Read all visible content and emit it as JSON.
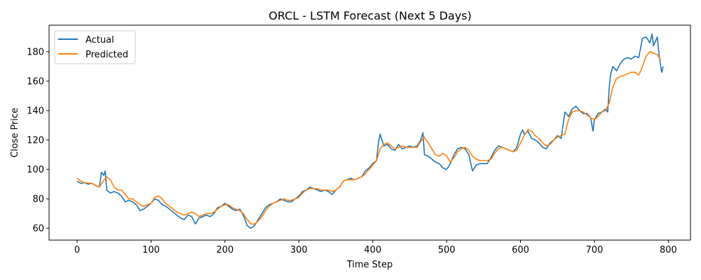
{
  "chart_data": {
    "type": "line",
    "title": "ORCL - LSTM Forecast (Next 5 Days)",
    "xlabel": "Time Step",
    "ylabel": "Close Price",
    "xlim": [
      -38,
      830
    ],
    "ylim": [
      52,
      198
    ],
    "xticks": [
      0,
      100,
      200,
      300,
      400,
      500,
      600,
      700,
      800
    ],
    "yticks": [
      60,
      80,
      100,
      120,
      140,
      160,
      180
    ],
    "grid": false,
    "legend_position": "top-left",
    "series": [
      {
        "name": "Actual",
        "color": "#1f77b4",
        "points": [
          [
            0,
            92
          ],
          [
            5,
            90.5
          ],
          [
            10,
            91
          ],
          [
            15,
            90
          ],
          [
            20,
            90.5
          ],
          [
            25,
            89
          ],
          [
            30,
            88
          ],
          [
            33,
            98
          ],
          [
            36,
            96
          ],
          [
            38,
            99
          ],
          [
            40,
            86
          ],
          [
            45,
            84
          ],
          [
            50,
            85
          ],
          [
            55,
            84
          ],
          [
            60,
            82
          ],
          [
            65,
            78
          ],
          [
            70,
            79
          ],
          [
            75,
            78
          ],
          [
            80,
            76
          ],
          [
            85,
            72
          ],
          [
            90,
            73
          ],
          [
            95,
            75
          ],
          [
            100,
            77
          ],
          [
            105,
            80
          ],
          [
            110,
            79
          ],
          [
            115,
            76
          ],
          [
            120,
            75
          ],
          [
            125,
            73
          ],
          [
            130,
            71
          ],
          [
            135,
            69
          ],
          [
            140,
            67
          ],
          [
            145,
            66
          ],
          [
            150,
            69
          ],
          [
            155,
            68
          ],
          [
            160,
            63
          ],
          [
            165,
            67
          ],
          [
            170,
            68
          ],
          [
            175,
            69
          ],
          [
            180,
            68
          ],
          [
            185,
            70
          ],
          [
            190,
            74
          ],
          [
            195,
            75
          ],
          [
            200,
            77
          ],
          [
            205,
            75
          ],
          [
            210,
            73
          ],
          [
            215,
            72
          ],
          [
            220,
            73
          ],
          [
            225,
            69
          ],
          [
            230,
            62
          ],
          [
            235,
            60
          ],
          [
            240,
            62
          ],
          [
            245,
            66
          ],
          [
            250,
            70
          ],
          [
            255,
            74
          ],
          [
            260,
            76
          ],
          [
            265,
            77
          ],
          [
            270,
            78
          ],
          [
            275,
            80
          ],
          [
            280,
            79
          ],
          [
            285,
            78
          ],
          [
            290,
            78
          ],
          [
            295,
            80
          ],
          [
            300,
            82
          ],
          [
            305,
            85
          ],
          [
            310,
            86
          ],
          [
            315,
            88
          ],
          [
            320,
            87
          ],
          [
            325,
            86
          ],
          [
            330,
            85
          ],
          [
            335,
            86
          ],
          [
            340,
            85
          ],
          [
            345,
            83
          ],
          [
            350,
            86
          ],
          [
            355,
            88
          ],
          [
            360,
            92
          ],
          [
            365,
            93
          ],
          [
            370,
            94
          ],
          [
            375,
            93
          ],
          [
            380,
            94
          ],
          [
            385,
            95
          ],
          [
            390,
            99
          ],
          [
            395,
            101
          ],
          [
            400,
            104
          ],
          [
            405,
            106
          ],
          [
            408,
            119
          ],
          [
            410,
            124
          ],
          [
            415,
            116
          ],
          [
            420,
            117
          ],
          [
            425,
            114
          ],
          [
            430,
            113
          ],
          [
            435,
            117
          ],
          [
            440,
            114
          ],
          [
            445,
            115
          ],
          [
            450,
            116
          ],
          [
            455,
            115
          ],
          [
            460,
            116
          ],
          [
            465,
            120
          ],
          [
            468,
            125
          ],
          [
            470,
            110
          ],
          [
            475,
            109
          ],
          [
            480,
            107
          ],
          [
            485,
            105
          ],
          [
            490,
            104
          ],
          [
            495,
            101
          ],
          [
            500,
            100
          ],
          [
            505,
            104
          ],
          [
            510,
            110
          ],
          [
            515,
            114
          ],
          [
            520,
            115
          ],
          [
            525,
            114
          ],
          [
            530,
            110
          ],
          [
            535,
            99
          ],
          [
            540,
            103
          ],
          [
            545,
            104
          ],
          [
            550,
            104
          ],
          [
            555,
            104
          ],
          [
            560,
            108
          ],
          [
            565,
            113
          ],
          [
            570,
            116
          ],
          [
            575,
            115
          ],
          [
            580,
            114
          ],
          [
            585,
            113
          ],
          [
            590,
            112
          ],
          [
            595,
            115
          ],
          [
            600,
            124
          ],
          [
            603,
            127
          ],
          [
            605,
            124
          ],
          [
            610,
            126
          ],
          [
            615,
            121
          ],
          [
            620,
            120
          ],
          [
            625,
            118
          ],
          [
            630,
            115
          ],
          [
            635,
            114
          ],
          [
            640,
            118
          ],
          [
            645,
            120
          ],
          [
            650,
            123
          ],
          [
            655,
            121
          ],
          [
            658,
            132
          ],
          [
            660,
            139
          ],
          [
            665,
            136
          ],
          [
            670,
            141
          ],
          [
            675,
            143
          ],
          [
            680,
            140
          ],
          [
            685,
            138
          ],
          [
            690,
            138
          ],
          [
            695,
            135
          ],
          [
            698,
            126
          ],
          [
            700,
            134
          ],
          [
            705,
            138
          ],
          [
            710,
            139
          ],
          [
            715,
            141
          ],
          [
            718,
            139
          ],
          [
            720,
            155
          ],
          [
            722,
            165
          ],
          [
            725,
            170
          ],
          [
            730,
            167
          ],
          [
            735,
            172
          ],
          [
            740,
            175
          ],
          [
            745,
            176
          ],
          [
            750,
            175
          ],
          [
            755,
            177
          ],
          [
            760,
            176
          ],
          [
            765,
            189
          ],
          [
            770,
            190
          ],
          [
            775,
            186
          ],
          [
            778,
            192
          ],
          [
            780,
            184
          ],
          [
            785,
            190
          ],
          [
            788,
            176
          ],
          [
            791,
            166
          ],
          [
            793,
            170
          ]
        ]
      },
      {
        "name": "Predicted",
        "color": "#ff7f0e",
        "points": [
          [
            0,
            94
          ],
          [
            5,
            92
          ],
          [
            10,
            91
          ],
          [
            20,
            90.5
          ],
          [
            30,
            88
          ],
          [
            35,
            92
          ],
          [
            40,
            95
          ],
          [
            45,
            93
          ],
          [
            50,
            88
          ],
          [
            55,
            86
          ],
          [
            60,
            86
          ],
          [
            65,
            83
          ],
          [
            70,
            80
          ],
          [
            75,
            80
          ],
          [
            80,
            78
          ],
          [
            85,
            76
          ],
          [
            90,
            75
          ],
          [
            95,
            76
          ],
          [
            100,
            77
          ],
          [
            105,
            81
          ],
          [
            110,
            82
          ],
          [
            115,
            80
          ],
          [
            120,
            77
          ],
          [
            125,
            75
          ],
          [
            130,
            73
          ],
          [
            135,
            71
          ],
          [
            140,
            70
          ],
          [
            145,
            69
          ],
          [
            150,
            70
          ],
          [
            155,
            71
          ],
          [
            160,
            70
          ],
          [
            165,
            68
          ],
          [
            170,
            69
          ],
          [
            175,
            70
          ],
          [
            180,
            70
          ],
          [
            185,
            71
          ],
          [
            190,
            73
          ],
          [
            195,
            75
          ],
          [
            200,
            76
          ],
          [
            205,
            76
          ],
          [
            210,
            74
          ],
          [
            215,
            73
          ],
          [
            220,
            72
          ],
          [
            225,
            70
          ],
          [
            230,
            66
          ],
          [
            235,
            63
          ],
          [
            240,
            63
          ],
          [
            245,
            65
          ],
          [
            250,
            68
          ],
          [
            255,
            72
          ],
          [
            260,
            75
          ],
          [
            265,
            77
          ],
          [
            270,
            78
          ],
          [
            275,
            79
          ],
          [
            280,
            80
          ],
          [
            285,
            79
          ],
          [
            290,
            79
          ],
          [
            295,
            80
          ],
          [
            300,
            81
          ],
          [
            305,
            84
          ],
          [
            310,
            86
          ],
          [
            315,
            87
          ],
          [
            320,
            87
          ],
          [
            325,
            87
          ],
          [
            330,
            86
          ],
          [
            335,
            86
          ],
          [
            340,
            86
          ],
          [
            345,
            85
          ],
          [
            350,
            86
          ],
          [
            355,
            88
          ],
          [
            360,
            92
          ],
          [
            365,
            93
          ],
          [
            370,
            93
          ],
          [
            375,
            93
          ],
          [
            380,
            94
          ],
          [
            385,
            95
          ],
          [
            390,
            97
          ],
          [
            395,
            100
          ],
          [
            400,
            103
          ],
          [
            405,
            106
          ],
          [
            410,
            114
          ],
          [
            415,
            117
          ],
          [
            420,
            118
          ],
          [
            425,
            116
          ],
          [
            430,
            114
          ],
          [
            435,
            115
          ],
          [
            440,
            116
          ],
          [
            445,
            115
          ],
          [
            450,
            115
          ],
          [
            455,
            115
          ],
          [
            460,
            115
          ],
          [
            465,
            119
          ],
          [
            470,
            122
          ],
          [
            475,
            118
          ],
          [
            480,
            114
          ],
          [
            485,
            110
          ],
          [
            490,
            109
          ],
          [
            495,
            111
          ],
          [
            500,
            109
          ],
          [
            505,
            105
          ],
          [
            510,
            108
          ],
          [
            515,
            112
          ],
          [
            520,
            114
          ],
          [
            525,
            115
          ],
          [
            530,
            113
          ],
          [
            535,
            109
          ],
          [
            540,
            107
          ],
          [
            545,
            106
          ],
          [
            550,
            106
          ],
          [
            555,
            106
          ],
          [
            560,
            107
          ],
          [
            565,
            111
          ],
          [
            570,
            114
          ],
          [
            575,
            115
          ],
          [
            580,
            114
          ],
          [
            585,
            113
          ],
          [
            590,
            112
          ],
          [
            595,
            113
          ],
          [
            600,
            118
          ],
          [
            605,
            123
          ],
          [
            610,
            127
          ],
          [
            615,
            126
          ],
          [
            620,
            123
          ],
          [
            625,
            121
          ],
          [
            630,
            118
          ],
          [
            635,
            116
          ],
          [
            640,
            117
          ],
          [
            645,
            120
          ],
          [
            650,
            122
          ],
          [
            655,
            123
          ],
          [
            660,
            124
          ],
          [
            665,
            134
          ],
          [
            670,
            139
          ],
          [
            675,
            140
          ],
          [
            680,
            140
          ],
          [
            685,
            139
          ],
          [
            690,
            137
          ],
          [
            695,
            135
          ],
          [
            700,
            134
          ],
          [
            705,
            136
          ],
          [
            710,
            139
          ],
          [
            715,
            140
          ],
          [
            720,
            145
          ],
          [
            725,
            156
          ],
          [
            730,
            162
          ],
          [
            735,
            163
          ],
          [
            740,
            164
          ],
          [
            745,
            165
          ],
          [
            750,
            166
          ],
          [
            755,
            166
          ],
          [
            760,
            164
          ],
          [
            765,
            170
          ],
          [
            770,
            177
          ],
          [
            775,
            180
          ],
          [
            780,
            179
          ],
          [
            785,
            178
          ],
          [
            790,
            174
          ]
        ]
      }
    ]
  }
}
